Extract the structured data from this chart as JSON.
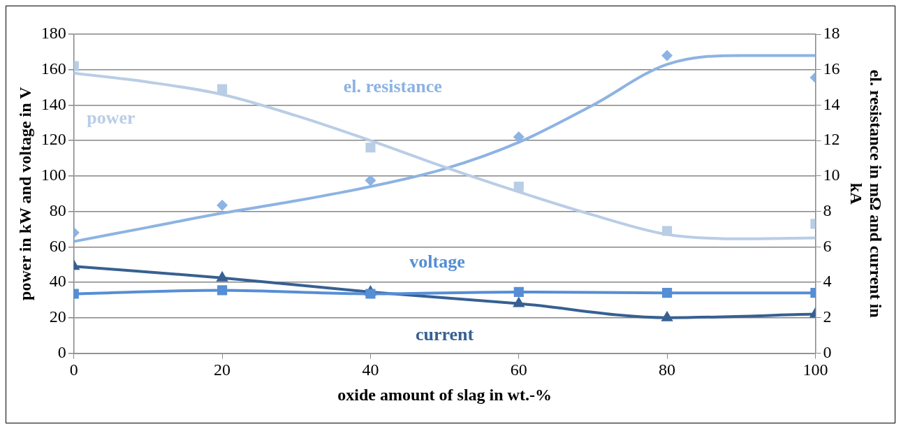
{
  "chart_data": {
    "type": "scatter",
    "xlabel": "oxide amount of slag in wt.-%",
    "ylabel": "power in kW and voltage in V",
    "y2label": "el. resistance in mΩ and current in kA",
    "xlim": [
      0,
      100
    ],
    "xticks": [
      0,
      20,
      40,
      60,
      80,
      100
    ],
    "ylim": [
      0,
      180
    ],
    "yticks": [
      0,
      20,
      40,
      60,
      80,
      100,
      120,
      140,
      160,
      180
    ],
    "y2lim": [
      0,
      18
    ],
    "y2ticks": [
      0,
      2,
      4,
      6,
      8,
      10,
      12,
      14,
      16,
      18
    ],
    "grid": "y",
    "legend": false,
    "series": [
      {
        "name": "power",
        "marker": "square",
        "color": "#b9cde5",
        "x": [
          0,
          20,
          40,
          60,
          80,
          100
        ],
        "values": [
          162,
          149,
          116,
          94,
          69,
          73
        ]
      },
      {
        "type": "line",
        "marker": "none",
        "color": "#b9cde5",
        "x": [
          0,
          10,
          20,
          30,
          40,
          50,
          60,
          70,
          80,
          90,
          100
        ],
        "values": [
          158,
          153,
          146,
          134,
          120,
          105,
          91,
          78,
          67,
          64.5,
          65
        ]
      },
      {
        "name": "el. resistance",
        "marker": "diamond",
        "axis": "y2",
        "color": "#8db3e2",
        "x": [
          0,
          20,
          40,
          60,
          80,
          100
        ],
        "values": [
          6.8,
          8.35,
          9.75,
          12.2,
          16.8,
          15.55
        ]
      },
      {
        "type": "line",
        "marker": "none",
        "axis": "y2",
        "color": "#8db3e2",
        "x": [
          0,
          10,
          20,
          30,
          40,
          50,
          60,
          70,
          80,
          90,
          100
        ],
        "values": [
          6.3,
          7.1,
          7.9,
          8.6,
          9.4,
          10.4,
          11.9,
          14.0,
          16.3,
          16.8,
          16.8
        ]
      },
      {
        "name": "voltage",
        "type": "line",
        "marker": "square",
        "color": "#558ed5",
        "x": [
          0,
          20,
          40,
          60,
          80,
          100
        ],
        "values": [
          33.5,
          35.5,
          33.5,
          34.5,
          34,
          34
        ]
      },
      {
        "name": "current",
        "type": "line",
        "marker": "triangle",
        "axis": "y2",
        "color": "#376092",
        "x": [
          0,
          20,
          40,
          60,
          80,
          100
        ],
        "values": [
          4.9,
          4.25,
          3.45,
          2.8,
          2.0,
          2.2
        ]
      }
    ]
  }
}
